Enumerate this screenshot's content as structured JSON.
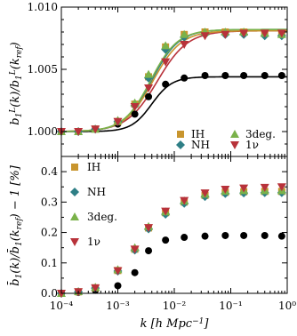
{
  "chart_data": [
    {
      "type": "line+scatter",
      "panel": "top",
      "ylabel": "b_1^L(k)/b_1^L(k_ref)",
      "xscale": "log",
      "xlim": [
        0.0001,
        1
      ],
      "ylim": [
        0.998,
        1.01
      ],
      "yticks": [
        "1.000",
        "1.005",
        "1.010"
      ],
      "legend": {
        "placement": "bottom-right",
        "entries": [
          {
            "label": "IH",
            "color": "#c8952e",
            "marker": "square"
          },
          {
            "label": "3deg.",
            "color": "#7ab24a",
            "marker": "triangle-up"
          },
          {
            "label": "NH",
            "color": "#2e7f86",
            "marker": "diamond"
          },
          {
            "label": "1ν",
            "color": "#b8323a",
            "marker": "triangle-down"
          }
        ]
      },
      "curves": [
        {
          "color": "#000000",
          "amp": 0.0044,
          "center": -2.4,
          "width": 0.18
        },
        {
          "color": "#b8323a",
          "amp": 0.0081,
          "center": -2.3,
          "width": 0.27
        },
        {
          "color": "#2e7f86",
          "amp": 0.0082,
          "center": -2.4,
          "width": 0.24
        },
        {
          "color": "#c8952e",
          "amp": 0.0081,
          "center": -2.38,
          "width": 0.25
        },
        {
          "color": "#7ab24a",
          "amp": 0.0082,
          "center": -2.42,
          "width": 0.24
        }
      ],
      "series": [
        {
          "color": "#000000",
          "marker": "circle",
          "x": [
            0.0001,
            0.0002,
            0.0004,
            0.001,
            0.002,
            0.0035,
            0.007,
            0.015,
            0.035,
            0.08,
            0.17,
            0.4,
            0.8
          ],
          "y": [
            1.0,
            1.0,
            1.0002,
            1.0006,
            1.0014,
            1.0028,
            1.0038,
            1.0043,
            1.0045,
            1.0045,
            1.0045,
            1.0045,
            1.0045
          ]
        },
        {
          "color": "#c8952e",
          "marker": "square",
          "x": [
            0.0001,
            0.0002,
            0.0004,
            0.001,
            0.002,
            0.0035,
            0.007,
            0.015,
            0.035,
            0.08,
            0.17,
            0.4,
            0.8
          ],
          "y": [
            1.0,
            1.0,
            1.0002,
            1.0008,
            1.0022,
            1.0044,
            1.0068,
            1.0078,
            1.008,
            1.008,
            1.008,
            1.0079,
            1.0079
          ]
        },
        {
          "color": "#2e7f86",
          "marker": "diamond",
          "x": [
            0.0001,
            0.0002,
            0.0004,
            0.001,
            0.002,
            0.0035,
            0.007,
            0.015,
            0.035,
            0.08,
            0.17,
            0.4,
            0.8
          ],
          "y": [
            1.0,
            1.0,
            1.0002,
            1.0008,
            1.0021,
            1.0043,
            1.0066,
            1.0076,
            1.0078,
            1.0078,
            1.0078,
            1.0077,
            1.0077
          ]
        },
        {
          "color": "#7ab24a",
          "marker": "triangle-up",
          "x": [
            0.0001,
            0.0002,
            0.0004,
            0.001,
            0.002,
            0.0035,
            0.007,
            0.015,
            0.035,
            0.08,
            0.17,
            0.4,
            0.8
          ],
          "y": [
            1.0,
            1.0,
            1.0002,
            1.0009,
            1.0023,
            1.0046,
            1.0069,
            1.0078,
            1.008,
            1.008,
            1.008,
            1.0079,
            1.0078
          ]
        },
        {
          "color": "#b8323a",
          "marker": "triangle-down",
          "x": [
            0.0001,
            0.0002,
            0.0004,
            0.001,
            0.002,
            0.0035,
            0.007,
            0.015,
            0.035,
            0.08,
            0.17,
            0.4,
            0.8
          ],
          "y": [
            1.0,
            1.0,
            1.0002,
            1.0008,
            1.002,
            1.0035,
            1.0056,
            1.007,
            1.0077,
            1.0078,
            1.0079,
            1.0079,
            1.0079
          ]
        }
      ]
    },
    {
      "type": "scatter",
      "panel": "bottom",
      "xlabel": "k [h Mpc⁻¹]",
      "ylabel": "b̄_1(k)/b̄_1(k_ref) − 1 [%]",
      "xscale": "log",
      "xlim": [
        0.0001,
        1
      ],
      "ylim": [
        0,
        0.45
      ],
      "xticks": [
        "10⁻⁴",
        "10⁻³",
        "10⁻²",
        "10⁻¹",
        "10⁰"
      ],
      "yticks": [
        "0.0",
        "0.1",
        "0.2",
        "0.3",
        "0.4"
      ],
      "legend": {
        "placement": "left",
        "entries": [
          {
            "label": "IH",
            "color": "#c8952e",
            "marker": "square"
          },
          {
            "label": "NH",
            "color": "#2e7f86",
            "marker": "diamond"
          },
          {
            "label": "3deg.",
            "color": "#7ab24a",
            "marker": "triangle-up"
          },
          {
            "label": "1ν",
            "color": "#b8323a",
            "marker": "triangle-down"
          }
        ]
      },
      "series": [
        {
          "color": "#000000",
          "marker": "circle",
          "x": [
            0.0001,
            0.0002,
            0.0004,
            0.001,
            0.002,
            0.0035,
            0.007,
            0.015,
            0.035,
            0.08,
            0.17,
            0.4,
            0.8
          ],
          "y": [
            0.0,
            0.003,
            0.01,
            0.025,
            0.068,
            0.14,
            0.175,
            0.184,
            0.188,
            0.19,
            0.19,
            0.19,
            0.188
          ]
        },
        {
          "color": "#c8952e",
          "marker": "square",
          "x": [
            0.0001,
            0.0002,
            0.0004,
            0.001,
            0.002,
            0.0035,
            0.007,
            0.015,
            0.035,
            0.08,
            0.17,
            0.4,
            0.8
          ],
          "y": [
            0.0,
            0.005,
            0.018,
            0.075,
            0.145,
            0.215,
            0.265,
            0.3,
            0.322,
            0.332,
            0.334,
            0.335,
            0.335
          ]
        },
        {
          "color": "#2e7f86",
          "marker": "diamond",
          "x": [
            0.0001,
            0.0002,
            0.0004,
            0.001,
            0.002,
            0.0035,
            0.007,
            0.015,
            0.035,
            0.08,
            0.17,
            0.4,
            0.8
          ],
          "y": [
            0.0,
            0.005,
            0.017,
            0.073,
            0.142,
            0.212,
            0.26,
            0.296,
            0.318,
            0.328,
            0.33,
            0.331,
            0.331
          ]
        },
        {
          "color": "#7ab24a",
          "marker": "triangle-up",
          "x": [
            0.0001,
            0.0002,
            0.0004,
            0.001,
            0.002,
            0.0035,
            0.007,
            0.015,
            0.035,
            0.08,
            0.17,
            0.4,
            0.8
          ],
          "y": [
            0.0,
            0.006,
            0.02,
            0.078,
            0.15,
            0.22,
            0.268,
            0.304,
            0.326,
            0.336,
            0.338,
            0.338,
            0.338
          ]
        },
        {
          "color": "#b8323a",
          "marker": "triangle-down",
          "x": [
            0.0001,
            0.0002,
            0.0004,
            0.001,
            0.002,
            0.0035,
            0.007,
            0.015,
            0.035,
            0.08,
            0.17,
            0.4,
            0.8
          ],
          "y": [
            0.0,
            0.005,
            0.018,
            0.074,
            0.145,
            0.216,
            0.27,
            0.305,
            0.33,
            0.342,
            0.346,
            0.348,
            0.35
          ]
        }
      ]
    }
  ]
}
